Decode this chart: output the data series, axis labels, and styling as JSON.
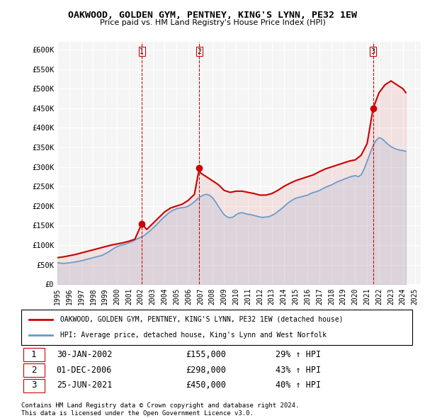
{
  "title": "OAKWOOD, GOLDEN GYM, PENTNEY, KING'S LYNN, PE32 1EW",
  "subtitle": "Price paid vs. HM Land Registry's House Price Index (HPI)",
  "ylabel_ticks": [
    "£0",
    "£50K",
    "£100K",
    "£150K",
    "£200K",
    "£250K",
    "£300K",
    "£350K",
    "£400K",
    "£450K",
    "£500K",
    "£550K",
    "£600K"
  ],
  "ytick_values": [
    0,
    50000,
    100000,
    150000,
    200000,
    250000,
    300000,
    350000,
    400000,
    450000,
    500000,
    550000,
    600000
  ],
  "ylim": [
    0,
    620000
  ],
  "xlim_start": 1995.0,
  "xlim_end": 2025.5,
  "hpi_color": "#6699cc",
  "price_color": "#cc0000",
  "sale_marker_color": "#cc0000",
  "vline_color": "#cc0000",
  "legend_label_price": "OAKWOOD, GOLDEN GYM, PENTNEY, KING'S LYNN, PE32 1EW (detached house)",
  "legend_label_hpi": "HPI: Average price, detached house, King's Lynn and West Norfolk",
  "transactions": [
    {
      "num": 1,
      "date": "30-JAN-2002",
      "price": 155000,
      "pct": "29%",
      "x_year": 2002.08
    },
    {
      "num": 2,
      "date": "01-DEC-2006",
      "price": 298000,
      "pct": "43%",
      "x_year": 2006.92
    },
    {
      "num": 3,
      "date": "25-JUN-2021",
      "price": 450000,
      "pct": "40%",
      "x_year": 2021.5
    }
  ],
  "footnote1": "Contains HM Land Registry data © Crown copyright and database right 2024.",
  "footnote2": "This data is licensed under the Open Government Licence v3.0.",
  "background_color": "#ffffff",
  "plot_bg_color": "#f5f5f5",
  "hpi_data_x": [
    1995.0,
    1995.25,
    1995.5,
    1995.75,
    1996.0,
    1996.25,
    1996.5,
    1996.75,
    1997.0,
    1997.25,
    1997.5,
    1997.75,
    1998.0,
    1998.25,
    1998.5,
    1998.75,
    1999.0,
    1999.25,
    1999.5,
    1999.75,
    2000.0,
    2000.25,
    2000.5,
    2000.75,
    2001.0,
    2001.25,
    2001.5,
    2001.75,
    2002.0,
    2002.25,
    2002.5,
    2002.75,
    2003.0,
    2003.25,
    2003.5,
    2003.75,
    2004.0,
    2004.25,
    2004.5,
    2004.75,
    2005.0,
    2005.25,
    2005.5,
    2005.75,
    2006.0,
    2006.25,
    2006.5,
    2006.75,
    2007.0,
    2007.25,
    2007.5,
    2007.75,
    2008.0,
    2008.25,
    2008.5,
    2008.75,
    2009.0,
    2009.25,
    2009.5,
    2009.75,
    2010.0,
    2010.25,
    2010.5,
    2010.75,
    2011.0,
    2011.25,
    2011.5,
    2011.75,
    2012.0,
    2012.25,
    2012.5,
    2012.75,
    2013.0,
    2013.25,
    2013.5,
    2013.75,
    2014.0,
    2014.25,
    2014.5,
    2014.75,
    2015.0,
    2015.25,
    2015.5,
    2015.75,
    2016.0,
    2016.25,
    2016.5,
    2016.75,
    2017.0,
    2017.25,
    2017.5,
    2017.75,
    2018.0,
    2018.25,
    2018.5,
    2018.75,
    2019.0,
    2019.25,
    2019.5,
    2019.75,
    2020.0,
    2020.25,
    2020.5,
    2020.75,
    2021.0,
    2021.25,
    2021.5,
    2021.75,
    2022.0,
    2022.25,
    2022.5,
    2022.75,
    2023.0,
    2023.25,
    2023.5,
    2023.75,
    2024.0,
    2024.25
  ],
  "hpi_data_y": [
    55000,
    54000,
    53500,
    54000,
    55000,
    56000,
    57000,
    58500,
    60000,
    62000,
    64000,
    66000,
    68000,
    70000,
    72000,
    74000,
    78000,
    82000,
    87000,
    92000,
    96000,
    99000,
    101000,
    103000,
    106000,
    109000,
    113000,
    117000,
    120000,
    124000,
    130000,
    136000,
    143000,
    150000,
    158000,
    166000,
    173000,
    180000,
    186000,
    190000,
    193000,
    195000,
    196000,
    197000,
    200000,
    205000,
    211000,
    218000,
    224000,
    228000,
    230000,
    228000,
    222000,
    212000,
    200000,
    188000,
    178000,
    172000,
    170000,
    172000,
    178000,
    182000,
    183000,
    181000,
    179000,
    178000,
    176000,
    174000,
    172000,
    171000,
    172000,
    173000,
    176000,
    180000,
    186000,
    192000,
    198000,
    205000,
    211000,
    216000,
    220000,
    222000,
    224000,
    226000,
    228000,
    232000,
    235000,
    237000,
    240000,
    244000,
    248000,
    251000,
    254000,
    258000,
    262000,
    265000,
    268000,
    271000,
    274000,
    276000,
    278000,
    275000,
    280000,
    295000,
    315000,
    335000,
    355000,
    368000,
    375000,
    372000,
    365000,
    358000,
    352000,
    348000,
    345000,
    343000,
    342000,
    340000
  ],
  "price_data_x": [
    1995.0,
    1995.5,
    1996.0,
    1996.5,
    1997.0,
    1997.5,
    1998.0,
    1998.5,
    1999.0,
    1999.5,
    2000.0,
    2000.5,
    2001.0,
    2001.5,
    2002.08,
    2002.5,
    2003.0,
    2003.5,
    2004.0,
    2004.5,
    2005.0,
    2005.5,
    2006.0,
    2006.5,
    2006.92,
    2007.0,
    2007.5,
    2008.0,
    2008.5,
    2009.0,
    2009.5,
    2010.0,
    2010.5,
    2011.0,
    2011.5,
    2012.0,
    2012.5,
    2013.0,
    2013.5,
    2014.0,
    2014.5,
    2015.0,
    2015.5,
    2016.0,
    2016.5,
    2017.0,
    2017.5,
    2018.0,
    2018.5,
    2019.0,
    2019.5,
    2020.0,
    2020.5,
    2021.0,
    2021.5,
    2022.0,
    2022.5,
    2023.0,
    2023.5,
    2024.0,
    2024.25
  ],
  "price_data_y": [
    68000,
    70000,
    73000,
    76000,
    80000,
    84000,
    88000,
    92000,
    96000,
    100000,
    103000,
    106000,
    110000,
    115000,
    155000,
    140000,
    155000,
    170000,
    185000,
    195000,
    200000,
    205000,
    215000,
    230000,
    298000,
    285000,
    275000,
    265000,
    255000,
    240000,
    235000,
    238000,
    238000,
    235000,
    232000,
    228000,
    228000,
    232000,
    240000,
    250000,
    258000,
    265000,
    270000,
    275000,
    280000,
    288000,
    295000,
    300000,
    305000,
    310000,
    315000,
    318000,
    330000,
    360000,
    450000,
    490000,
    510000,
    520000,
    510000,
    500000,
    490000
  ]
}
